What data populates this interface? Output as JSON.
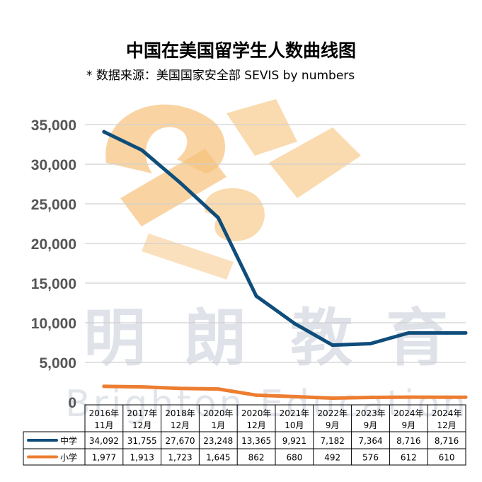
{
  "chart_data": {
    "type": "line",
    "title": "中国在美国留学生人数曲线图",
    "subtitle": "* 数据来源：美国国家安全部 SEVIS by numbers",
    "categories": [
      [
        "2016年",
        "11月"
      ],
      [
        "2017年",
        "12月"
      ],
      [
        "2018年",
        "12月"
      ],
      [
        "2020年",
        "1月"
      ],
      [
        "2020年",
        "12月"
      ],
      [
        "2021年",
        "10月"
      ],
      [
        "2022年",
        "9月"
      ],
      [
        "2023年",
        "9月"
      ],
      [
        "2024年",
        "9月"
      ],
      [
        "2024年",
        "12月"
      ]
    ],
    "ylim": [
      0,
      35000
    ],
    "yticks": [
      0,
      5000,
      10000,
      15000,
      20000,
      25000,
      30000,
      35000
    ],
    "ytick_labels": [
      "0",
      "5,000",
      "10,000",
      "15,000",
      "20,000",
      "25,000",
      "30,000",
      "35,000"
    ],
    "grid": true,
    "series": [
      {
        "name": "中学",
        "color": "#0f4d7a",
        "values": [
          34092,
          31755,
          27670,
          23248,
          13365,
          9921,
          7182,
          7364,
          8716,
          8716
        ],
        "labels": [
          "34,092",
          "31,755",
          "27,670",
          "23,248",
          "13,365",
          "9,921",
          "7,182",
          "7,364",
          "8,716",
          "8,716"
        ]
      },
      {
        "name": "小学",
        "color": "#ed7d31",
        "values": [
          1977,
          1913,
          1723,
          1645,
          862,
          680,
          492,
          576,
          612,
          610
        ],
        "labels": [
          "1,977",
          "1,913",
          "1,723",
          "1,645",
          "862",
          "680",
          "492",
          "576",
          "612",
          "610"
        ]
      }
    ]
  },
  "watermark": {
    "cn": [
      "明",
      "朗",
      "教",
      "育"
    ],
    "en": "Brighton Education",
    "logo_color": "#f6c27a"
  }
}
